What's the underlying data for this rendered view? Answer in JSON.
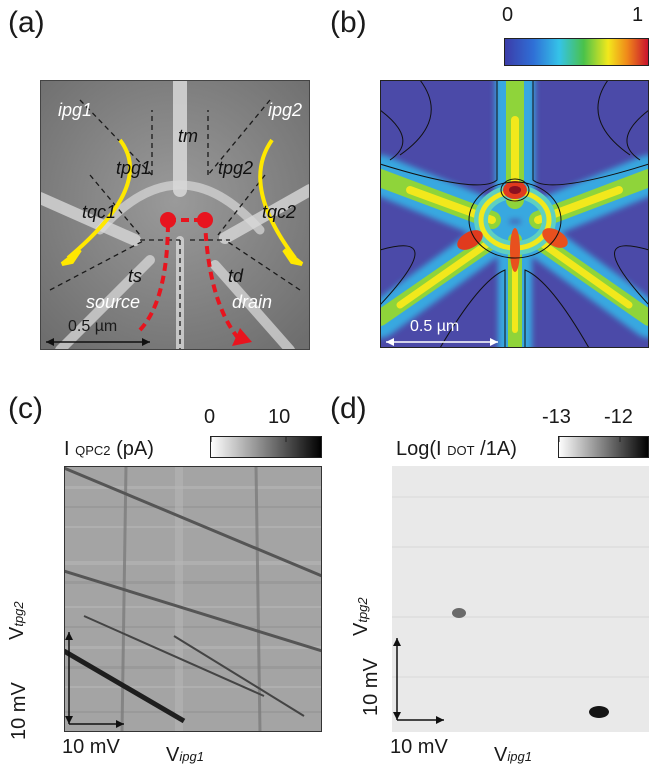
{
  "panels": {
    "a": {
      "letter": "(a)",
      "labels": {
        "ipg1": "ipg1",
        "ipg2": "ipg2",
        "tm": "tm",
        "tpg1": "tpg1",
        "tpg2": "tpg2",
        "tqc1": "tqc1",
        "tqc2": "tqc2",
        "ts": "ts",
        "td": "td",
        "source": "source",
        "drain": "drain"
      },
      "scale_bar": "0.5 µm"
    },
    "b": {
      "letter": "(b)",
      "colorbar": {
        "min": "0",
        "max": "1"
      },
      "scale_bar": "0.5 µm"
    },
    "c": {
      "letter": "(c)",
      "quantity": "I",
      "quantity_sub": "QPC2",
      "unit": "(pA)",
      "colorbar": {
        "min": "0",
        "max": "10"
      },
      "x_scale": "10 mV",
      "y_scale": "10 mV",
      "xlabel": "V",
      "xlabel_sub": "ipg1",
      "ylabel": "V",
      "ylabel_sub": "tpg2"
    },
    "d": {
      "letter": "(d)",
      "quantity": "Log(I",
      "quantity_sub": "DOT",
      "unit": " /1A)",
      "colorbar": {
        "min": "-13",
        "max": "-12"
      },
      "x_scale": "10 mV",
      "y_scale": "10 mV",
      "xlabel": "V",
      "xlabel_sub": "ipg1",
      "ylabel": "V",
      "ylabel_sub": "tpg2"
    }
  },
  "colors": {
    "arrow_yellow": "#ffe800",
    "arrow_red": "#e8141e",
    "sem_background": "#8a8a8a",
    "potential_low": "#4b4aa8"
  }
}
